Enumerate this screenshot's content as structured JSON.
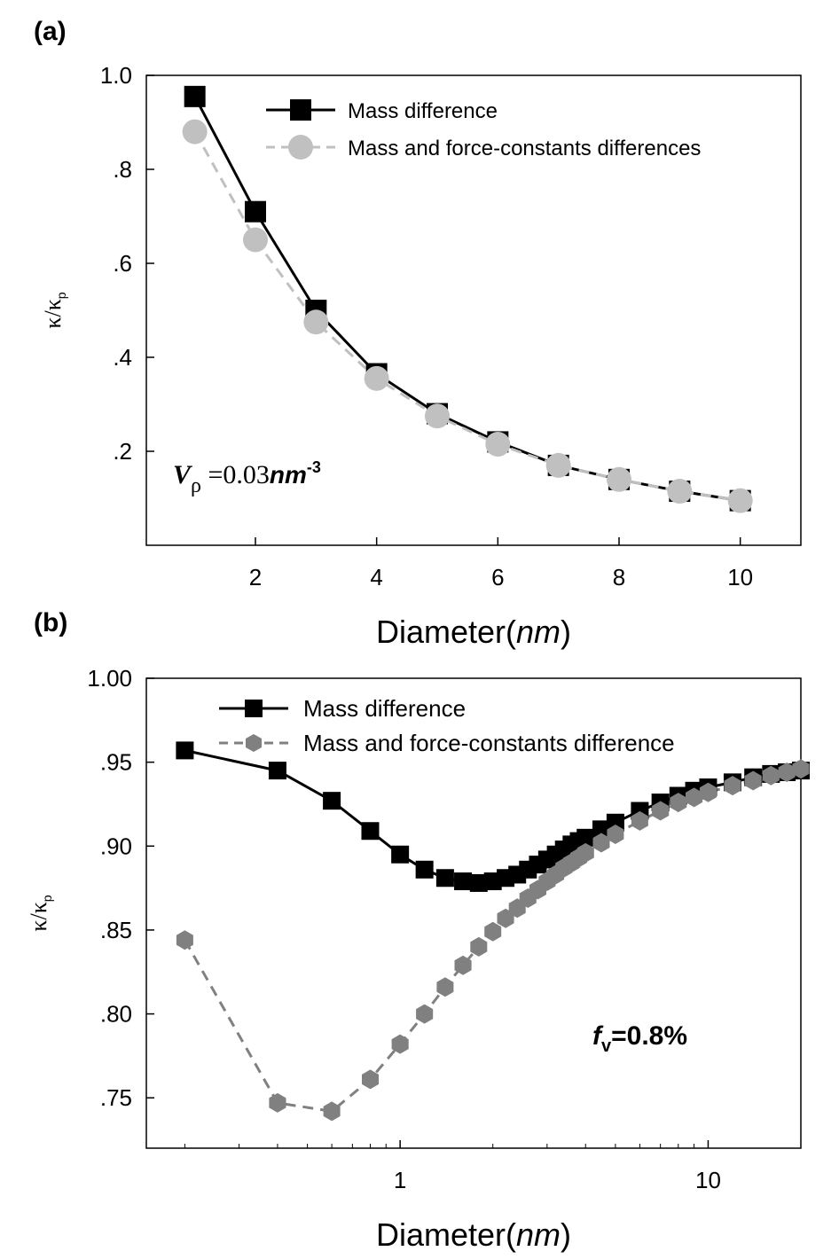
{
  "chart_data": [
    {
      "panel_label": "(a)",
      "type": "line",
      "xlabel_main": "Diameter(",
      "xlabel_unit": "nm",
      "xlabel_close": ")",
      "ylabel_main": "κ/κ",
      "ylabel_sub": "p",
      "xscale": "linear",
      "xlim": [
        0.2,
        11.0
      ],
      "ylim": [
        0.0,
        1.0
      ],
      "xticks": [
        {
          "value": 2,
          "label": "2"
        },
        {
          "value": 4,
          "label": "4"
        },
        {
          "value": 6,
          "label": "6"
        },
        {
          "value": 8,
          "label": "8"
        },
        {
          "value": 10,
          "label": "10"
        }
      ],
      "yticks": [
        {
          "value": 0.2,
          "label": ".2"
        },
        {
          "value": 0.4,
          "label": ".4"
        },
        {
          "value": 0.6,
          "label": ".6"
        },
        {
          "value": 0.8,
          "label": ".8"
        },
        {
          "value": 1.0,
          "label": "1.0"
        }
      ],
      "legend_position": "top-right",
      "annotation": {
        "v": "V",
        "rho": "ρ",
        "eq": " =0.03",
        "unit": "nm",
        "exp": "-3"
      },
      "series": [
        {
          "name": "Mass difference",
          "color": "#000000",
          "marker": "square",
          "dash": "solid",
          "x": [
            1,
            2,
            3,
            4,
            5,
            6,
            7,
            8,
            9,
            10
          ],
          "y": [
            0.955,
            0.71,
            0.5,
            0.365,
            0.28,
            0.22,
            0.17,
            0.14,
            0.115,
            0.095
          ]
        },
        {
          "name": "Mass and force-constants differences",
          "color": "#c0c0c0",
          "marker": "circle",
          "dash": "dashed",
          "x": [
            1,
            2,
            3,
            4,
            5,
            6,
            7,
            8,
            9,
            10
          ],
          "y": [
            0.88,
            0.65,
            0.475,
            0.355,
            0.275,
            0.215,
            0.17,
            0.14,
            0.115,
            0.095
          ]
        }
      ]
    },
    {
      "panel_label": "(b)",
      "type": "line",
      "xlabel_main": "Diameter(",
      "xlabel_unit": "nm",
      "xlabel_close": ")",
      "ylabel_main": "κ/κ",
      "ylabel_sub": "p",
      "xscale": "log",
      "xlim": [
        0.15,
        20
      ],
      "ylim": [
        0.72,
        1.0
      ],
      "xticks": [
        {
          "value": 1,
          "label": "1"
        },
        {
          "value": 10,
          "label": "10"
        }
      ],
      "yticks": [
        {
          "value": 0.75,
          "label": ".75"
        },
        {
          "value": 0.8,
          "label": ".80"
        },
        {
          "value": 0.85,
          "label": ".85"
        },
        {
          "value": 0.9,
          "label": ".90"
        },
        {
          "value": 0.95,
          "label": ".95"
        },
        {
          "value": 1.0,
          "label": "1.00"
        }
      ],
      "legend_position": "top-right",
      "annotation": {
        "f": "f",
        "sub": "v",
        "eq": "=0.8%"
      },
      "series": [
        {
          "name": "Mass difference",
          "color": "#000000",
          "marker": "square",
          "dash": "solid",
          "x": [
            0.2,
            0.4,
            0.6,
            0.8,
            1.0,
            1.2,
            1.4,
            1.6,
            1.8,
            2.0,
            2.2,
            2.4,
            2.6,
            2.8,
            3.0,
            3.2,
            3.4,
            3.6,
            3.8,
            4.0,
            4.5,
            5.0,
            6.0,
            7.0,
            8.0,
            9.0,
            10.0,
            12.0,
            14.0,
            16.0,
            18.0,
            20.0
          ],
          "y": [
            0.957,
            0.945,
            0.927,
            0.909,
            0.895,
            0.886,
            0.881,
            0.879,
            0.878,
            0.879,
            0.881,
            0.883,
            0.886,
            0.889,
            0.892,
            0.895,
            0.898,
            0.901,
            0.903,
            0.905,
            0.91,
            0.914,
            0.921,
            0.926,
            0.93,
            0.933,
            0.935,
            0.938,
            0.941,
            0.943,
            0.944,
            0.945
          ]
        },
        {
          "name": "Mass and force-constants difference",
          "color": "#808080",
          "marker": "hexagon",
          "dash": "dashed",
          "x": [
            0.2,
            0.4,
            0.6,
            0.8,
            1.0,
            1.2,
            1.4,
            1.6,
            1.8,
            2.0,
            2.2,
            2.4,
            2.6,
            2.8,
            3.0,
            3.2,
            3.4,
            3.6,
            3.8,
            4.0,
            4.5,
            5.0,
            6.0,
            7.0,
            8.0,
            9.0,
            10.0,
            12.0,
            14.0,
            16.0,
            18.0,
            20.0
          ],
          "y": [
            0.844,
            0.747,
            0.742,
            0.761,
            0.782,
            0.8,
            0.816,
            0.829,
            0.84,
            0.849,
            0.857,
            0.863,
            0.869,
            0.874,
            0.879,
            0.883,
            0.887,
            0.89,
            0.893,
            0.896,
            0.902,
            0.907,
            0.915,
            0.921,
            0.926,
            0.929,
            0.932,
            0.936,
            0.939,
            0.942,
            0.944,
            0.946
          ]
        }
      ]
    }
  ]
}
